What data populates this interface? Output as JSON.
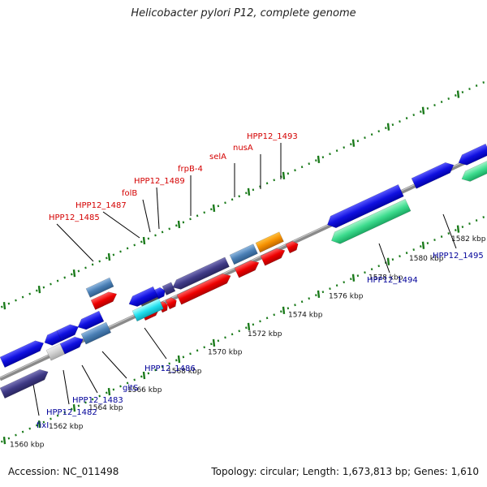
{
  "title": "Helicobacter pylori P12, complete genome",
  "footer": {
    "accession": "Accession: NC_011498",
    "summary": "Topology: circular; Length: 1,673,813 bp; Genes: 1,610"
  },
  "colors": {
    "backbone": "#8a8a8a",
    "dots": "#1a7a1a",
    "top_label": "#d40000",
    "bottom_label": "#000099"
  },
  "scale_labels": [
    "1560 kbp",
    "1562 kbp",
    "1564 kbp",
    "1566 kbp",
    "1568 kbp",
    "1570 kbp",
    "1572 kbp",
    "1574 kbp",
    "1576 kbp",
    "1578 kbp",
    "1580 kbp",
    "1582 kbp"
  ],
  "top_labels": [
    "HPP12_1485",
    "HPP12_1487",
    "folB",
    "HPP12_1489",
    "frpB-4",
    "selA",
    "nusA",
    "HPP12_1493"
  ],
  "bottom_labels": [
    "fixI",
    "HPP12_1482",
    "HPP12_1483",
    "gltS",
    "HPP12_1486",
    "HPP12_1494",
    "HPP12_1495"
  ]
}
